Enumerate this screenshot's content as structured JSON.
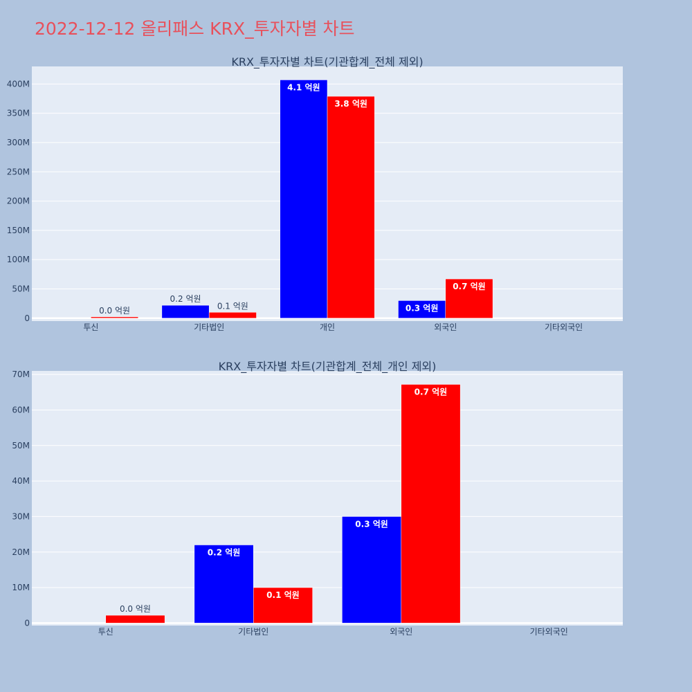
{
  "page": {
    "title": "2022-12-12 올리패스 KRX_투자자별 차트"
  },
  "colors": {
    "background": "#b0c4de",
    "plot_background": "#e5ecf6",
    "buy": "#0000ff",
    "sell": "#ff0000",
    "title": "#e8505b",
    "text": "#2a3f5f"
  },
  "chart_data": [
    {
      "type": "bar",
      "title": "KRX_투자자별 차트(기관합계_전체 제외)",
      "categories": [
        "투신",
        "기타법인",
        "개인",
        "외국인",
        "기타외국인"
      ],
      "series": [
        {
          "color": "#0000ff",
          "values": [
            0,
            22000000,
            407000000,
            30000000,
            0
          ],
          "labels": [
            "",
            "0.2 억원",
            "4.1 억원",
            "0.3 억원",
            ""
          ]
        },
        {
          "color": "#ff0000",
          "values": [
            2200000,
            10000000,
            379000000,
            67000000,
            0
          ],
          "labels": [
            "0.0 억원",
            "0.1 억원",
            "3.8 억원",
            "0.7 억원",
            ""
          ]
        }
      ],
      "ylim": [
        -5000000,
        430000000
      ],
      "yticks": [
        0,
        50000000,
        100000000,
        150000000,
        200000000,
        250000000,
        300000000,
        350000000,
        400000000
      ],
      "ytick_labels": [
        "0",
        "50M",
        "100M",
        "150M",
        "200M",
        "250M",
        "300M",
        "350M",
        "400M"
      ],
      "grid": true,
      "legend": "none"
    },
    {
      "type": "bar",
      "title": "KRX_투자자별 차트(기관합계_전체_개인 제외)",
      "categories": [
        "투신",
        "기타법인",
        "외국인",
        "기타외국인"
      ],
      "series": [
        {
          "color": "#0000ff",
          "values": [
            0,
            22000000,
            30000000,
            0
          ],
          "labels": [
            "",
            "0.2 억원",
            "0.3 억원",
            ""
          ]
        },
        {
          "color": "#ff0000",
          "values": [
            2200000,
            10000000,
            67200000,
            0
          ],
          "labels": [
            "0.0 억원",
            "0.1 억원",
            "0.7 억원",
            ""
          ]
        }
      ],
      "ylim": [
        -700000,
        71000000
      ],
      "yticks": [
        0,
        10000000,
        20000000,
        30000000,
        40000000,
        50000000,
        60000000,
        70000000
      ],
      "ytick_labels": [
        "0",
        "10M",
        "20M",
        "30M",
        "40M",
        "50M",
        "60M",
        "70M"
      ],
      "grid": true,
      "legend": "none"
    }
  ]
}
